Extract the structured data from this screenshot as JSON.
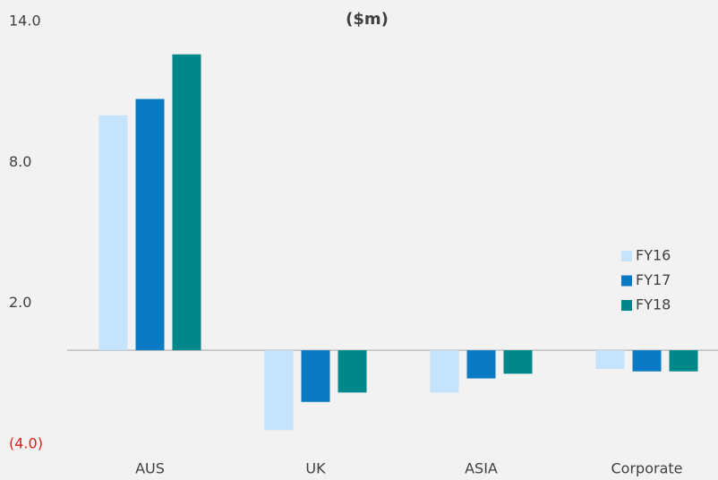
{
  "chart_data": {
    "type": "bar",
    "title": "($m)",
    "categories": [
      "AUS",
      "UK",
      "ASIA",
      "Corporate"
    ],
    "series": [
      {
        "name": "FY16",
        "color": "#c5e3fb",
        "values": [
          10.0,
          -3.4,
          -1.8,
          -0.8
        ]
      },
      {
        "name": "FY17",
        "color": "#0a7ac4",
        "values": [
          10.7,
          -2.2,
          -1.2,
          -0.9
        ]
      },
      {
        "name": "FY18",
        "color": "#00878a",
        "values": [
          12.6,
          -1.8,
          -1.0,
          -0.9
        ]
      }
    ],
    "ylim": [
      -4,
      14
    ],
    "yticks": [
      {
        "value": 14,
        "label": "14.0"
      },
      {
        "value": 8,
        "label": "8.0"
      },
      {
        "value": 2,
        "label": "2.0"
      },
      {
        "value": -4,
        "label": "(4.0)"
      }
    ],
    "negative_tick_color": "#e0201b",
    "grid": false,
    "legend": "right"
  }
}
